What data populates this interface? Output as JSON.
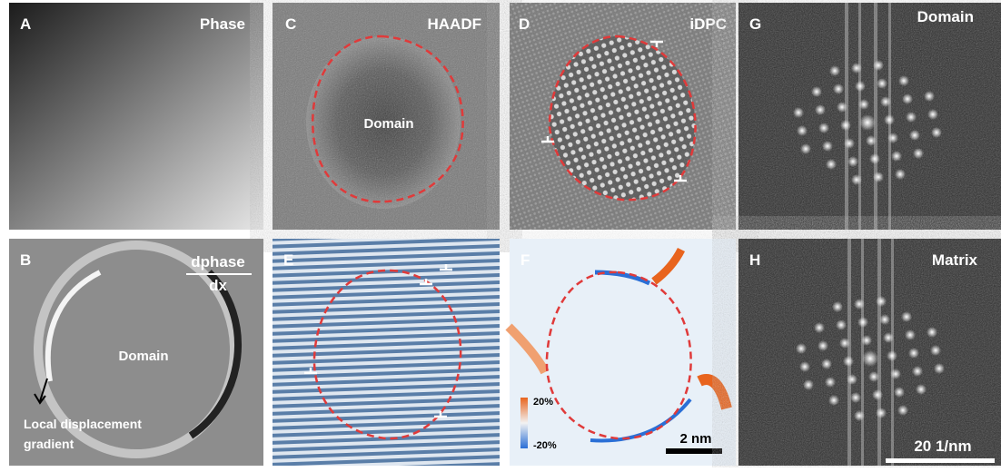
{
  "panels": [
    {
      "label": "A",
      "title": "Phase"
    },
    {
      "label": "B",
      "title_numerator": "dphase",
      "title_denominator": "dx",
      "annotation": "Domain",
      "note_lines": [
        "Local displacement",
        "gradient"
      ]
    },
    {
      "label": "C",
      "title": "HAADF",
      "annotation": "Domain"
    },
    {
      "label": "D",
      "title": "iDPC"
    },
    {
      "label": "E"
    },
    {
      "label": "F",
      "colorbar_max": "20%",
      "colorbar_min": "-20%",
      "scale_bar": "2 nm"
    },
    {
      "label": "G",
      "title": "Domain"
    },
    {
      "label": "H",
      "title": "Matrix",
      "scale_bar": "20 1/nm"
    }
  ]
}
